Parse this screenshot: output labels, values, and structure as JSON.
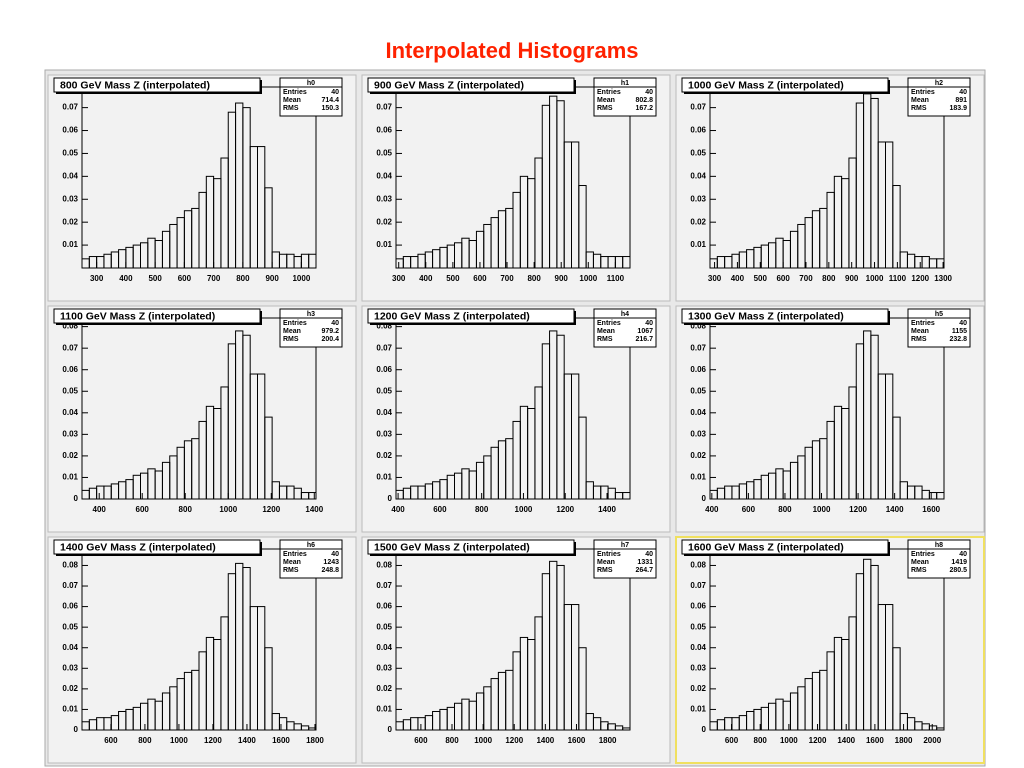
{
  "title": "Interpolated Histograms",
  "chart_data": [
    {
      "type": "histogram",
      "title": "800 GeV Mass Z (interpolated)",
      "stats": {
        "name": "h0",
        "labels": [
          "Entries",
          "Mean",
          "RMS"
        ],
        "values": [
          40,
          714.4,
          150.3
        ]
      },
      "bins": [
        250,
        275,
        300,
        325,
        350,
        375,
        400,
        425,
        450,
        475,
        500,
        525,
        550,
        575,
        600,
        625,
        650,
        675,
        700,
        725,
        750,
        775,
        800,
        825,
        850,
        875,
        900,
        925,
        950,
        975,
        1000,
        1025,
        1050
      ],
      "counts": [
        0.004,
        0.005,
        0.005,
        0.006,
        0.007,
        0.008,
        0.009,
        0.01,
        0.011,
        0.013,
        0.012,
        0.016,
        0.019,
        0.022,
        0.025,
        0.026,
        0.033,
        0.04,
        0.039,
        0.048,
        0.068,
        0.072,
        0.07,
        0.053,
        0.053,
        0.035,
        0.007,
        0.006,
        0.006,
        0.005,
        0.006,
        0.006
      ],
      "xlim": [
        250,
        1050
      ],
      "xticks": [
        300,
        400,
        500,
        600,
        700,
        800,
        900,
        1000
      ],
      "ylim": [
        0,
        0.079
      ],
      "yticks": [
        0.01,
        0.02,
        0.03,
        0.04,
        0.05,
        0.06,
        0.07
      ]
    },
    {
      "type": "histogram",
      "title": "900 GeV Mass Z (interpolated)",
      "stats": {
        "name": "h1",
        "labels": [
          "Entries",
          "Mean",
          "RMS"
        ],
        "values": [
          40,
          802.8,
          167.2
        ]
      },
      "bins": [
        290,
        317,
        344,
        371,
        398,
        425,
        452,
        479,
        506,
        533,
        560,
        587,
        614,
        641,
        668,
        695,
        722,
        749,
        776,
        803,
        830,
        857,
        884,
        911,
        938,
        965,
        992,
        1019,
        1046,
        1073,
        1100,
        1127,
        1154
      ],
      "counts": [
        0.004,
        0.005,
        0.005,
        0.006,
        0.007,
        0.008,
        0.009,
        0.01,
        0.011,
        0.013,
        0.012,
        0.016,
        0.019,
        0.022,
        0.025,
        0.026,
        0.033,
        0.04,
        0.039,
        0.048,
        0.071,
        0.075,
        0.073,
        0.055,
        0.055,
        0.036,
        0.007,
        0.006,
        0.005,
        0.005,
        0.005,
        0.005
      ],
      "xlim": [
        290,
        1154
      ],
      "xticks": [
        300,
        400,
        500,
        600,
        700,
        800,
        900,
        1000,
        1100
      ],
      "ylim": [
        0,
        0.079
      ],
      "yticks": [
        0.01,
        0.02,
        0.03,
        0.04,
        0.05,
        0.06,
        0.07
      ]
    },
    {
      "type": "histogram",
      "title": "1000 GeV Mass Z (interpolated)",
      "stats": {
        "name": "h2",
        "labels": [
          "Entries",
          "Mean",
          "RMS"
        ],
        "values": [
          40,
          891,
          183.9
        ]
      },
      "bins": [
        280,
        312,
        344,
        376,
        408,
        440,
        472,
        504,
        536,
        568,
        600,
        632,
        664,
        696,
        728,
        760,
        792,
        824,
        856,
        888,
        920,
        952,
        984,
        1016,
        1048,
        1080,
        1112,
        1144,
        1176,
        1208,
        1240,
        1272,
        1304
      ],
      "counts": [
        0.004,
        0.005,
        0.005,
        0.006,
        0.007,
        0.008,
        0.009,
        0.01,
        0.011,
        0.013,
        0.012,
        0.016,
        0.019,
        0.022,
        0.025,
        0.026,
        0.033,
        0.04,
        0.039,
        0.048,
        0.072,
        0.076,
        0.074,
        0.055,
        0.055,
        0.036,
        0.007,
        0.006,
        0.005,
        0.005,
        0.004,
        0.004
      ],
      "xlim": [
        280,
        1304
      ],
      "xticks": [
        300,
        400,
        500,
        600,
        700,
        800,
        900,
        1000,
        1100,
        1200,
        1300
      ],
      "ylim": [
        0,
        0.079
      ],
      "yticks": [
        0.01,
        0.02,
        0.03,
        0.04,
        0.05,
        0.06,
        0.07
      ]
    },
    {
      "type": "histogram",
      "title": "1100 GeV Mass Z (interpolated)",
      "stats": {
        "name": "h3",
        "labels": [
          "Entries",
          "Mean",
          "RMS"
        ],
        "values": [
          40,
          979.2,
          200.4
        ]
      },
      "bins": [
        320,
        354,
        388,
        422,
        456,
        490,
        524,
        558,
        592,
        626,
        660,
        694,
        728,
        762,
        796,
        830,
        864,
        898,
        932,
        966,
        1000,
        1034,
        1068,
        1102,
        1136,
        1170,
        1204,
        1238,
        1272,
        1306,
        1340,
        1374,
        1408
      ],
      "counts": [
        0.004,
        0.005,
        0.006,
        0.006,
        0.007,
        0.008,
        0.009,
        0.011,
        0.012,
        0.014,
        0.013,
        0.017,
        0.02,
        0.024,
        0.027,
        0.028,
        0.036,
        0.043,
        0.042,
        0.052,
        0.072,
        0.078,
        0.076,
        0.058,
        0.058,
        0.038,
        0.008,
        0.006,
        0.006,
        0.005,
        0.003,
        0.003
      ],
      "xlim": [
        320,
        1408
      ],
      "xticks": [
        400,
        600,
        800,
        1000,
        1200,
        1400
      ],
      "ylim": [
        0,
        0.084
      ],
      "yticks": [
        0,
        0.01,
        0.02,
        0.03,
        0.04,
        0.05,
        0.06,
        0.07,
        0.08
      ]
    },
    {
      "type": "histogram",
      "title": "1200 GeV Mass Z (interpolated)",
      "stats": {
        "name": "h4",
        "labels": [
          "Entries",
          "Mean",
          "RMS"
        ],
        "values": [
          40,
          1067,
          216.7
        ]
      },
      "bins": [
        390,
        425,
        460,
        495,
        530,
        565,
        600,
        635,
        670,
        705,
        740,
        775,
        810,
        845,
        880,
        915,
        950,
        985,
        1020,
        1055,
        1090,
        1125,
        1160,
        1195,
        1230,
        1265,
        1300,
        1335,
        1370,
        1405,
        1440,
        1475,
        1510
      ],
      "counts": [
        0.004,
        0.005,
        0.006,
        0.006,
        0.007,
        0.008,
        0.009,
        0.011,
        0.012,
        0.014,
        0.013,
        0.017,
        0.02,
        0.024,
        0.027,
        0.028,
        0.036,
        0.043,
        0.042,
        0.052,
        0.072,
        0.078,
        0.076,
        0.058,
        0.058,
        0.038,
        0.008,
        0.006,
        0.006,
        0.005,
        0.003,
        0.003
      ],
      "xlim": [
        390,
        1510
      ],
      "xticks": [
        400,
        600,
        800,
        1000,
        1200,
        1400
      ],
      "ylim": [
        0,
        0.084
      ],
      "yticks": [
        0,
        0.01,
        0.02,
        0.03,
        0.04,
        0.05,
        0.06,
        0.07,
        0.08
      ]
    },
    {
      "type": "histogram",
      "title": "1300 GeV Mass Z (interpolated)",
      "stats": {
        "name": "h5",
        "labels": [
          "Entries",
          "Mean",
          "RMS"
        ],
        "values": [
          40,
          1155,
          232.8
        ]
      },
      "bins": [
        390,
        430,
        470,
        510,
        550,
        590,
        630,
        670,
        710,
        750,
        790,
        830,
        870,
        910,
        950,
        990,
        1030,
        1070,
        1110,
        1150,
        1190,
        1230,
        1270,
        1310,
        1350,
        1390,
        1430,
        1470,
        1510,
        1550,
        1590,
        1630,
        1670
      ],
      "counts": [
        0.004,
        0.005,
        0.006,
        0.006,
        0.007,
        0.008,
        0.009,
        0.011,
        0.012,
        0.014,
        0.013,
        0.017,
        0.02,
        0.024,
        0.027,
        0.028,
        0.036,
        0.043,
        0.042,
        0.052,
        0.072,
        0.078,
        0.076,
        0.058,
        0.058,
        0.038,
        0.008,
        0.006,
        0.006,
        0.004,
        0.003,
        0.003
      ],
      "xlim": [
        390,
        1670
      ],
      "xticks": [
        400,
        600,
        800,
        1000,
        1200,
        1400,
        1600
      ],
      "ylim": [
        0,
        0.084
      ],
      "yticks": [
        0,
        0.01,
        0.02,
        0.03,
        0.04,
        0.05,
        0.06,
        0.07,
        0.08
      ]
    },
    {
      "type": "histogram",
      "title": "1400 GeV Mass Z (interpolated)",
      "stats": {
        "name": "h6",
        "labels": [
          "Entries",
          "Mean",
          "RMS"
        ],
        "values": [
          40,
          1243,
          248.8
        ]
      },
      "bins": [
        430,
        473,
        516,
        559,
        602,
        645,
        688,
        731,
        774,
        817,
        860,
        903,
        946,
        989,
        1032,
        1075,
        1118,
        1161,
        1204,
        1247,
        1290,
        1333,
        1376,
        1419,
        1462,
        1505,
        1548,
        1591,
        1634,
        1677,
        1720,
        1763,
        1806
      ],
      "counts": [
        0.004,
        0.005,
        0.006,
        0.006,
        0.007,
        0.009,
        0.01,
        0.011,
        0.013,
        0.015,
        0.014,
        0.018,
        0.021,
        0.025,
        0.028,
        0.029,
        0.038,
        0.045,
        0.044,
        0.055,
        0.076,
        0.081,
        0.079,
        0.06,
        0.06,
        0.04,
        0.008,
        0.006,
        0.004,
        0.003,
        0.002,
        0.001
      ],
      "xlim": [
        430,
        1806
      ],
      "xticks": [
        600,
        800,
        1000,
        1200,
        1400,
        1600,
        1800
      ],
      "ylim": [
        0,
        0.088
      ],
      "yticks": [
        0,
        0.01,
        0.02,
        0.03,
        0.04,
        0.05,
        0.06,
        0.07,
        0.08
      ]
    },
    {
      "type": "histogram",
      "title": "1500 GeV Mass Z (interpolated)",
      "stats": {
        "name": "h7",
        "labels": [
          "Entries",
          "Mean",
          "RMS"
        ],
        "values": [
          40,
          1331,
          264.7
        ]
      },
      "bins": [
        440,
        487,
        534,
        581,
        628,
        675,
        722,
        769,
        816,
        863,
        910,
        957,
        1004,
        1051,
        1098,
        1145,
        1192,
        1239,
        1286,
        1333,
        1380,
        1427,
        1474,
        1521,
        1568,
        1615,
        1662,
        1709,
        1756,
        1803,
        1850,
        1897,
        1944
      ],
      "counts": [
        0.004,
        0.005,
        0.006,
        0.006,
        0.007,
        0.009,
        0.01,
        0.011,
        0.013,
        0.015,
        0.014,
        0.018,
        0.021,
        0.025,
        0.028,
        0.029,
        0.038,
        0.045,
        0.044,
        0.055,
        0.076,
        0.082,
        0.08,
        0.061,
        0.061,
        0.04,
        0.008,
        0.006,
        0.004,
        0.003,
        0.002,
        0.001
      ],
      "xlim": [
        440,
        1944
      ],
      "xticks": [
        600,
        800,
        1000,
        1200,
        1400,
        1600,
        1800
      ],
      "ylim": [
        0,
        0.088
      ],
      "yticks": [
        0,
        0.01,
        0.02,
        0.03,
        0.04,
        0.05,
        0.06,
        0.07,
        0.08
      ]
    },
    {
      "type": "histogram",
      "title": "1600 GeV Mass Z (interpolated)",
      "stats": {
        "name": "h8",
        "labels": [
          "Entries",
          "Mean",
          "RMS"
        ],
        "values": [
          40,
          1419,
          280.5
        ]
      },
      "bins": [
        450,
        501,
        552,
        603,
        654,
        705,
        756,
        807,
        858,
        909,
        960,
        1011,
        1062,
        1113,
        1164,
        1215,
        1266,
        1317,
        1368,
        1419,
        1470,
        1521,
        1572,
        1623,
        1674,
        1725,
        1776,
        1827,
        1878,
        1929,
        1980,
        2031,
        2082
      ],
      "counts": [
        0.004,
        0.005,
        0.006,
        0.006,
        0.007,
        0.009,
        0.01,
        0.011,
        0.013,
        0.015,
        0.014,
        0.018,
        0.021,
        0.025,
        0.028,
        0.029,
        0.038,
        0.045,
        0.044,
        0.055,
        0.076,
        0.083,
        0.08,
        0.061,
        0.061,
        0.04,
        0.008,
        0.006,
        0.004,
        0.003,
        0.002,
        0.001
      ],
      "xlim": [
        450,
        2082
      ],
      "xticks": [
        600,
        800,
        1000,
        1200,
        1400,
        1600,
        1800,
        2000
      ],
      "ylim": [
        0,
        0.088
      ],
      "yticks": [
        0,
        0.01,
        0.02,
        0.03,
        0.04,
        0.05,
        0.06,
        0.07,
        0.08
      ]
    }
  ]
}
